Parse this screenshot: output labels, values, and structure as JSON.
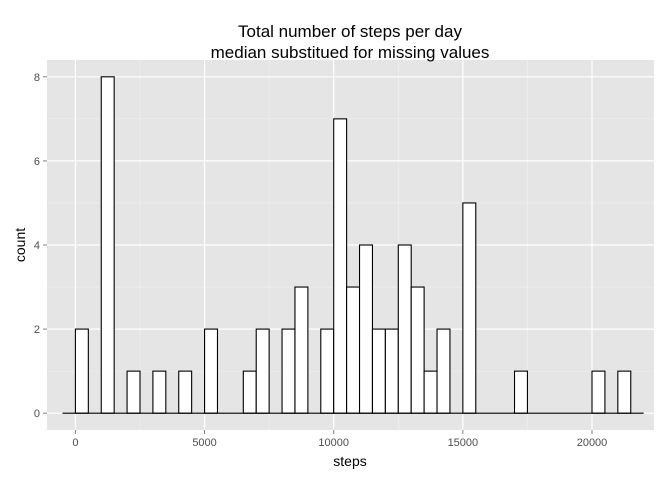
{
  "chart_data": {
    "type": "bar",
    "title": [
      "Total number of steps per day",
      "median substitued for missing values"
    ],
    "xlabel": "steps",
    "ylabel": "count",
    "xlim": [
      -1100,
      22400
    ],
    "ylim": [
      -0.4,
      8.4
    ],
    "x_ticks": [
      0,
      5000,
      10000,
      15000,
      20000
    ],
    "y_ticks": [
      0,
      2,
      4,
      6,
      8
    ],
    "binwidth": 500,
    "bins_start": [
      -500,
      0,
      500,
      1000,
      1500,
      2000,
      2500,
      3000,
      3500,
      4000,
      4500,
      5000,
      5500,
      6000,
      6500,
      7000,
      7500,
      8000,
      8500,
      9000,
      9500,
      10000,
      10500,
      11000,
      11500,
      12000,
      12500,
      13000,
      13500,
      14000,
      14500,
      15000,
      15500,
      16000,
      16500,
      17000,
      17500,
      18000,
      18500,
      19000,
      19500,
      20000,
      20500,
      21000,
      21500
    ],
    "values": [
      0,
      2,
      0,
      8,
      0,
      1,
      0,
      1,
      0,
      1,
      0,
      2,
      0,
      0,
      1,
      2,
      0,
      2,
      3,
      0,
      2,
      7,
      3,
      4,
      2,
      2,
      4,
      3,
      1,
      2,
      0,
      5,
      0,
      0,
      0,
      1,
      0,
      0,
      0,
      0,
      0,
      1,
      0,
      1,
      0
    ],
    "grid": true,
    "colors": {
      "panel_bg": "#e5e5e5",
      "grid_major": "#ffffff",
      "grid_minor": "#f2f2f2",
      "bar_fill": "#ffffff",
      "bar_stroke": "#000000"
    }
  }
}
